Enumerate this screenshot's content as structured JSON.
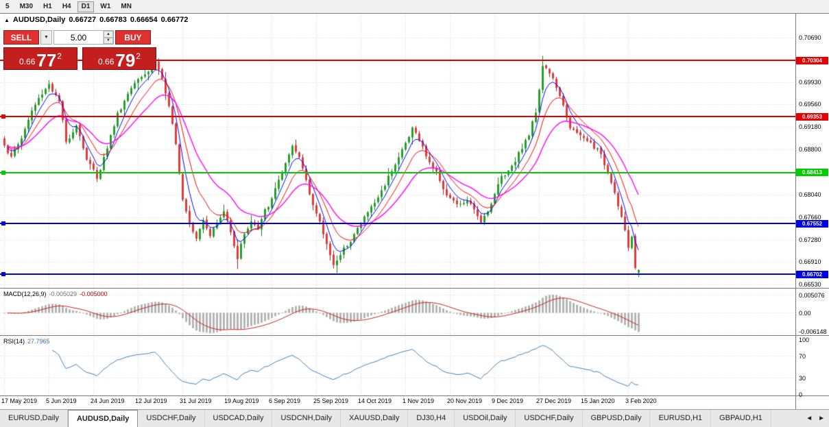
{
  "toolbar": {
    "timeframes": [
      "5",
      "M30",
      "H1",
      "H4",
      "D1",
      "W1",
      "MN"
    ],
    "active_timeframe": "D1"
  },
  "chart_header": {
    "marker": "▲",
    "symbol": "AUDUSD,Daily",
    "ohlc": [
      "0.66727",
      "0.66783",
      "0.66654",
      "0.66772"
    ]
  },
  "trade_panel": {
    "sell_label": "SELL",
    "buy_label": "BUY",
    "volume_value": "5.00",
    "dropdown_icon": "▼",
    "spin_up_icon": "▲",
    "spin_down_icon": "▼",
    "sell_price": {
      "prefix": "0.66",
      "big": "77",
      "pip": "2"
    },
    "buy_price": {
      "prefix": "0.66",
      "big": "79",
      "pip": "2"
    }
  },
  "price_scale": {
    "ticks": [
      "0.70690",
      "0.69930",
      "0.69560",
      "0.69180",
      "0.68800",
      "0.68040",
      "0.67660",
      "0.67280",
      "0.66910",
      "0.66530"
    ]
  },
  "macd_panel": {
    "name": "MACD(12,26,9)",
    "value_main": "-0.005029",
    "value_signal": "-0.005000",
    "scale_ticks": [
      "0.005076",
      "0.00",
      "-0.006148"
    ]
  },
  "rsi_panel": {
    "name": "RSI(14)",
    "value": "27.7965",
    "scale_ticks": [
      "100",
      "70",
      "30",
      "0"
    ]
  },
  "date_axis": {
    "labels": [
      "17 May 2019",
      "5 Jun 2019",
      "24 Jun 2019",
      "12 Jul 2019",
      "31 Jul 2019",
      "19 Aug 2019",
      "6 Sep 2019",
      "25 Sep 2019",
      "14 Oct 2019",
      "1 Nov 2019",
      "20 Nov 2019",
      "9 Dec 2019",
      "27 Dec 2019",
      "15 Jan 2020",
      "3 Feb 2020"
    ]
  },
  "tab_bar": {
    "tabs": [
      "EURUSD,Daily",
      "AUDUSD,Daily",
      "USDCHF,Daily",
      "USDCAD,Daily",
      "USDCNH,Daily",
      "XAUUSD,Daily",
      "DJ30,H4",
      "USDOil,Daily",
      "USDCHF,Daily",
      "GBPUSD,Daily",
      "EURUSD,H1",
      "GBPAUD,H1"
    ],
    "active_tab": "AUDUSD,Daily",
    "nav_left": "◄",
    "nav_right": "►"
  },
  "chart_data": {
    "type": "candlestick",
    "title": "AUDUSD,Daily",
    "x_labels": [
      "17 May 2019",
      "5 Jun 2019",
      "24 Jun 2019",
      "12 Jul 2019",
      "31 Jul 2019",
      "19 Aug 2019",
      "6 Sep 2019",
      "25 Sep 2019",
      "14 Oct 2019",
      "1 Nov 2019",
      "20 Nov 2019",
      "9 Dec 2019",
      "27 Dec 2019",
      "15 Jan 2020",
      "3 Feb 2020"
    ],
    "candles_per_label": 13,
    "num_candles": 186,
    "price_range_visible": [
      0.66472,
      0.71089
    ],
    "grid_on": true,
    "up_color": "#21a126",
    "up_wick_color": "#157419",
    "down_color": "#e23939",
    "down_wick_color": "#9c1f1f",
    "current_candle": {
      "open": 0.66727,
      "high": 0.66783,
      "low": 0.66654,
      "close": 0.66772
    },
    "close_path_anchors": [
      [
        0,
        0.689
      ],
      [
        2,
        0.6867
      ],
      [
        5,
        0.69
      ],
      [
        8,
        0.6945
      ],
      [
        11,
        0.6975
      ],
      [
        13,
        0.6992
      ],
      [
        16,
        0.696
      ],
      [
        18,
        0.689
      ],
      [
        21,
        0.6925
      ],
      [
        24,
        0.6865
      ],
      [
        27,
        0.6833
      ],
      [
        30,
        0.6885
      ],
      [
        33,
        0.694
      ],
      [
        36,
        0.6975
      ],
      [
        39,
        0.7005
      ],
      [
        42,
        0.7015
      ],
      [
        44,
        0.703
      ],
      [
        46,
        0.7
      ],
      [
        48,
        0.695
      ],
      [
        50,
        0.6885
      ],
      [
        52,
        0.68
      ],
      [
        54,
        0.676
      ],
      [
        56,
        0.6735
      ],
      [
        58,
        0.6765
      ],
      [
        60,
        0.674
      ],
      [
        62,
        0.6755
      ],
      [
        64,
        0.6775
      ],
      [
        66,
        0.6745
      ],
      [
        68,
        0.67
      ],
      [
        70,
        0.674
      ],
      [
        72,
        0.676
      ],
      [
        74,
        0.6745
      ],
      [
        76,
        0.6775
      ],
      [
        78,
        0.6795
      ],
      [
        80,
        0.683
      ],
      [
        82,
        0.6855
      ],
      [
        84,
        0.688
      ],
      [
        86,
        0.6865
      ],
      [
        88,
        0.683
      ],
      [
        90,
        0.679
      ],
      [
        92,
        0.6755
      ],
      [
        94,
        0.672
      ],
      [
        96,
        0.669
      ],
      [
        98,
        0.67
      ],
      [
        100,
        0.672
      ],
      [
        102,
        0.674
      ],
      [
        104,
        0.6755
      ],
      [
        106,
        0.6775
      ],
      [
        108,
        0.679
      ],
      [
        110,
        0.681
      ],
      [
        112,
        0.6835
      ],
      [
        114,
        0.686
      ],
      [
        116,
        0.688
      ],
      [
        118,
        0.69
      ],
      [
        119,
        0.692
      ],
      [
        121,
        0.6895
      ],
      [
        123,
        0.687
      ],
      [
        125,
        0.685
      ],
      [
        127,
        0.683
      ],
      [
        129,
        0.6805
      ],
      [
        131,
        0.679
      ],
      [
        133,
        0.6785
      ],
      [
        135,
        0.6795
      ],
      [
        137,
        0.6775
      ],
      [
        139,
        0.676
      ],
      [
        141,
        0.678
      ],
      [
        143,
        0.6805
      ],
      [
        145,
        0.6835
      ],
      [
        147,
        0.6845
      ],
      [
        149,
        0.6865
      ],
      [
        151,
        0.6885
      ],
      [
        153,
        0.6905
      ],
      [
        155,
        0.6945
      ],
      [
        157,
        0.7025
      ],
      [
        159,
        0.701
      ],
      [
        161,
        0.6985
      ],
      [
        163,
        0.695
      ],
      [
        165,
        0.692
      ],
      [
        167,
        0.6905
      ],
      [
        169,
        0.6897
      ],
      [
        171,
        0.689
      ],
      [
        173,
        0.688
      ],
      [
        175,
        0.6855
      ],
      [
        177,
        0.683
      ],
      [
        179,
        0.679
      ],
      [
        181,
        0.6745
      ],
      [
        182,
        0.671
      ],
      [
        183,
        0.6733
      ],
      [
        184,
        0.668
      ],
      [
        185,
        0.66772
      ]
    ],
    "wick_overrides": [
      {
        "i": 44,
        "high": 0.7048
      },
      {
        "i": 157,
        "high": 0.7038
      },
      {
        "i": 68,
        "low": 0.6679
      },
      {
        "i": 97,
        "low": 0.6672
      }
    ],
    "horizontal_lines": [
      {
        "price": 0.70304,
        "label": "0.70304",
        "color": "#e60000",
        "handle": false
      },
      {
        "price": 0.69353,
        "label": "0.69353",
        "color": "#e60000",
        "handle": true
      },
      {
        "price": 0.68413,
        "label": "0.68413",
        "color": "#00cc00",
        "handle": true
      },
      {
        "price": 0.67552,
        "label": "0.67552",
        "color": "#0000e6",
        "handle": true
      },
      {
        "price": 0.66702,
        "label": "0.66702",
        "color": "#0000e6",
        "handle": true
      }
    ],
    "moving_averages": [
      {
        "period": 5,
        "color": "#0000ff"
      },
      {
        "period": 10,
        "color": "#ff0000"
      },
      {
        "period": 21,
        "color": "#ff00ff"
      }
    ],
    "macd": {
      "fast": 12,
      "slow": 26,
      "signal": 9,
      "current_macd": -0.005029,
      "current_signal": -0.005,
      "scale_max": 0.005076,
      "scale_min": -0.006148,
      "histogram_color": "#b4b4b4",
      "signal_color": "#cc2222"
    },
    "rsi": {
      "period": 14,
      "current": 27.7965,
      "levels": [
        70,
        30
      ],
      "range": [
        0,
        100
      ],
      "line_color": "#4080c0"
    }
  }
}
